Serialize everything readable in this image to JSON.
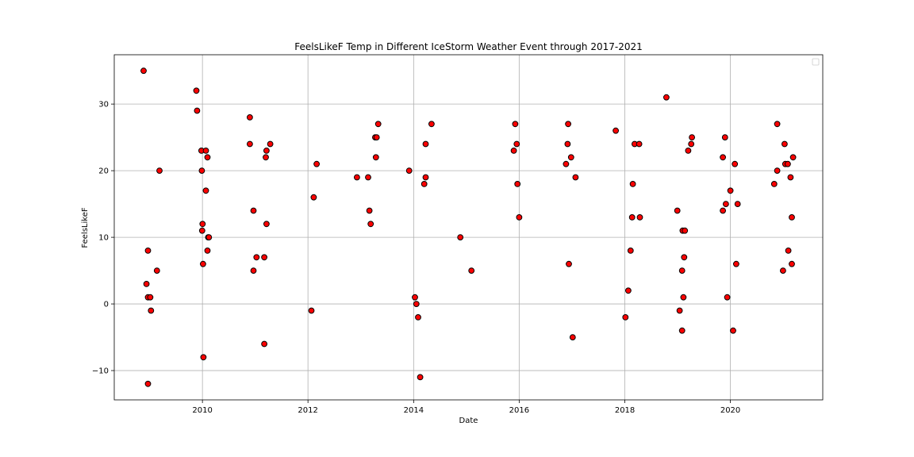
{
  "chart_data": {
    "type": "scatter",
    "title": "FeelsLikeF Temp in Different IceStorm Weather Event through 2017-2021",
    "xlabel": "Date",
    "ylabel": "FeelsLikeF",
    "x_axis_type": "date",
    "xlim": [
      "2008-05-01",
      "2021-10-01"
    ],
    "ylim": [
      -14.4,
      37.4
    ],
    "x_ticks": [
      "2010",
      "2012",
      "2014",
      "2016",
      "2018",
      "2020"
    ],
    "y_ticks": [
      -10,
      0,
      10,
      20,
      30
    ],
    "grid": true,
    "legend": "top-right (empty)",
    "marker_color": "#ff0000",
    "marker_edge_color": "#000000",
    "points": [
      {
        "x": "2008-11-20",
        "y": 35
      },
      {
        "x": "2008-12-10",
        "y": 3
      },
      {
        "x": "2008-12-20",
        "y": 8
      },
      {
        "x": "2008-12-20",
        "y": 1
      },
      {
        "x": "2008-12-20",
        "y": -12
      },
      {
        "x": "2009-01-05",
        "y": 1
      },
      {
        "x": "2009-01-10",
        "y": -1
      },
      {
        "x": "2009-02-20",
        "y": 5
      },
      {
        "x": "2009-03-10",
        "y": 20
      },
      {
        "x": "2009-11-20",
        "y": 32
      },
      {
        "x": "2009-11-25",
        "y": 29
      },
      {
        "x": "2009-12-25",
        "y": 23
      },
      {
        "x": "2009-12-28",
        "y": 20
      },
      {
        "x": "2009-12-30",
        "y": 11
      },
      {
        "x": "2010-01-02",
        "y": 12
      },
      {
        "x": "2010-01-05",
        "y": 6
      },
      {
        "x": "2010-01-08",
        "y": -8
      },
      {
        "x": "2010-01-25",
        "y": 23
      },
      {
        "x": "2010-01-25",
        "y": 17
      },
      {
        "x": "2010-02-05",
        "y": 22
      },
      {
        "x": "2010-02-05",
        "y": 8
      },
      {
        "x": "2010-02-10",
        "y": 10
      },
      {
        "x": "2010-02-15",
        "y": 10
      },
      {
        "x": "2010-11-25",
        "y": 28
      },
      {
        "x": "2010-11-25",
        "y": 24
      },
      {
        "x": "2010-12-20",
        "y": 14
      },
      {
        "x": "2010-12-20",
        "y": 5
      },
      {
        "x": "2011-01-10",
        "y": 7
      },
      {
        "x": "2011-03-05",
        "y": 7
      },
      {
        "x": "2011-03-05",
        "y": -6
      },
      {
        "x": "2011-03-15",
        "y": 22
      },
      {
        "x": "2011-03-20",
        "y": 23
      },
      {
        "x": "2011-03-20",
        "y": 12
      },
      {
        "x": "2011-04-15",
        "y": 24
      },
      {
        "x": "2012-01-25",
        "y": -1
      },
      {
        "x": "2012-02-10",
        "y": 16
      },
      {
        "x": "2012-03-01",
        "y": 21
      },
      {
        "x": "2012-12-05",
        "y": 19
      },
      {
        "x": "2013-02-20",
        "y": 19
      },
      {
        "x": "2013-03-01",
        "y": 14
      },
      {
        "x": "2013-03-10",
        "y": 12
      },
      {
        "x": "2013-04-10",
        "y": 25
      },
      {
        "x": "2013-04-15",
        "y": 22
      },
      {
        "x": "2013-04-20",
        "y": 25
      },
      {
        "x": "2013-05-01",
        "y": 27
      },
      {
        "x": "2013-12-01",
        "y": 20
      },
      {
        "x": "2014-01-10",
        "y": 1
      },
      {
        "x": "2014-01-20",
        "y": 0
      },
      {
        "x": "2014-02-01",
        "y": -2
      },
      {
        "x": "2014-02-15",
        "y": -11
      },
      {
        "x": "2014-03-15",
        "y": 18
      },
      {
        "x": "2014-03-25",
        "y": 24
      },
      {
        "x": "2014-03-25",
        "y": 19
      },
      {
        "x": "2014-05-05",
        "y": 27
      },
      {
        "x": "2014-11-20",
        "y": 10
      },
      {
        "x": "2015-02-05",
        "y": 5
      },
      {
        "x": "2015-11-25",
        "y": 23
      },
      {
        "x": "2015-12-05",
        "y": 27
      },
      {
        "x": "2015-12-15",
        "y": 24
      },
      {
        "x": "2015-12-20",
        "y": 18
      },
      {
        "x": "2016-01-01",
        "y": 13
      },
      {
        "x": "2016-11-20",
        "y": 21
      },
      {
        "x": "2016-12-01",
        "y": 24
      },
      {
        "x": "2016-12-05",
        "y": 27
      },
      {
        "x": "2016-12-10",
        "y": 6
      },
      {
        "x": "2016-12-25",
        "y": 22
      },
      {
        "x": "2017-01-05",
        "y": -5
      },
      {
        "x": "2017-01-25",
        "y": 19
      },
      {
        "x": "2017-10-30",
        "y": 26
      },
      {
        "x": "2018-01-05",
        "y": -2
      },
      {
        "x": "2018-01-25",
        "y": 2
      },
      {
        "x": "2018-02-10",
        "y": 8
      },
      {
        "x": "2018-02-20",
        "y": 13
      },
      {
        "x": "2018-02-25",
        "y": 18
      },
      {
        "x": "2018-03-10",
        "y": 24
      },
      {
        "x": "2018-04-10",
        "y": 24
      },
      {
        "x": "2018-04-15",
        "y": 13
      },
      {
        "x": "2018-10-15",
        "y": 31
      },
      {
        "x": "2018-12-30",
        "y": 14
      },
      {
        "x": "2019-01-15",
        "y": -1
      },
      {
        "x": "2019-02-01",
        "y": -4
      },
      {
        "x": "2019-02-01",
        "y": 5
      },
      {
        "x": "2019-02-05",
        "y": 11
      },
      {
        "x": "2019-02-10",
        "y": 1
      },
      {
        "x": "2019-02-15",
        "y": 7
      },
      {
        "x": "2019-02-20",
        "y": 11
      },
      {
        "x": "2019-03-15",
        "y": 23
      },
      {
        "x": "2019-04-05",
        "y": 24
      },
      {
        "x": "2019-04-10",
        "y": 25
      },
      {
        "x": "2019-11-10",
        "y": 14
      },
      {
        "x": "2019-11-10",
        "y": 22
      },
      {
        "x": "2019-11-25",
        "y": 25
      },
      {
        "x": "2019-12-01",
        "y": 15
      },
      {
        "x": "2019-12-10",
        "y": 1
      },
      {
        "x": "2020-01-01",
        "y": 17
      },
      {
        "x": "2020-01-20",
        "y": -4
      },
      {
        "x": "2020-02-01",
        "y": 21
      },
      {
        "x": "2020-02-10",
        "y": 6
      },
      {
        "x": "2020-02-20",
        "y": 15
      },
      {
        "x": "2020-10-30",
        "y": 18
      },
      {
        "x": "2020-11-20",
        "y": 27
      },
      {
        "x": "2020-11-20",
        "y": 20
      },
      {
        "x": "2020-12-30",
        "y": 5
      },
      {
        "x": "2021-01-10",
        "y": 24
      },
      {
        "x": "2021-01-15",
        "y": 21
      },
      {
        "x": "2021-02-01",
        "y": 21
      },
      {
        "x": "2021-02-05",
        "y": 8
      },
      {
        "x": "2021-02-20",
        "y": 19
      },
      {
        "x": "2021-03-01",
        "y": 13
      },
      {
        "x": "2021-03-01",
        "y": 6
      },
      {
        "x": "2021-03-10",
        "y": 22
      }
    ]
  }
}
